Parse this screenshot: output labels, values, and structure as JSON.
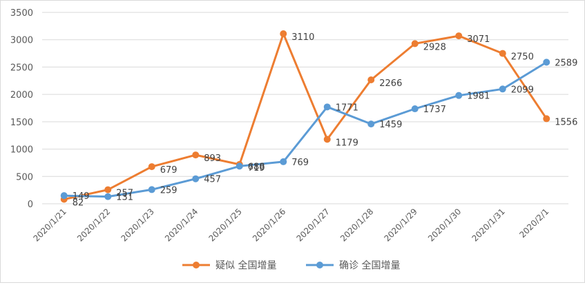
{
  "chart_data": {
    "type": "line",
    "categories": [
      "2020/1/21",
      "2020/1/22",
      "2020/1/23",
      "2020/1/24",
      "2020/1/25",
      "2020/1/26",
      "2020/1/27",
      "2020/1/28",
      "2020/1/29",
      "2020/1/30",
      "2020/1/31",
      "2020/2/1"
    ],
    "series": [
      {
        "name": "疑似 全国增量",
        "color": "#ED7D31",
        "values": [
          82,
          257,
          679,
          893,
          719,
          3110,
          1179,
          2266,
          2928,
          3071,
          2750,
          1556
        ]
      },
      {
        "name": "确诊 全国增量",
        "color": "#5B9BD5",
        "values": [
          149,
          131,
          259,
          457,
          688,
          769,
          1771,
          1459,
          1737,
          1981,
          2099,
          2589
        ]
      }
    ],
    "ylim": [
      0,
      3500
    ],
    "yticks": [
      0,
      500,
      1000,
      1500,
      2000,
      2500,
      3000,
      3500
    ],
    "grid": true,
    "legend_position": "bottom",
    "gridline_color": "#d9d9d9"
  }
}
